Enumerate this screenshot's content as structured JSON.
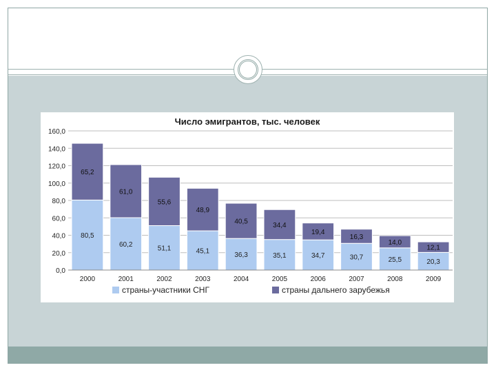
{
  "colors": {
    "series_cis": "#aecbf0",
    "series_far": "#6b6b9e",
    "body_band": "#c8d4d6",
    "footer_band": "#8fa9a6"
  },
  "chart_data": {
    "type": "bar",
    "stacked": true,
    "title": "Число эмигрантов, тыс. человек",
    "categories": [
      "2000",
      "2001",
      "2002",
      "2003",
      "2004",
      "2005",
      "2006",
      "2007",
      "2008",
      "2009"
    ],
    "series": [
      {
        "name": "страны-участники СНГ",
        "values": [
          80.5,
          60.2,
          51.1,
          45.1,
          36.3,
          35.1,
          34.7,
          30.7,
          25.5,
          20.3
        ],
        "labels": [
          "80,5",
          "60,2",
          "51,1",
          "45,1",
          "36,3",
          "35,1",
          "34,7",
          "30,7",
          "25,5",
          "20,3"
        ]
      },
      {
        "name": "страны дальнего зарубежья",
        "values": [
          65.2,
          61.0,
          55.6,
          48.9,
          40.5,
          34.4,
          19.4,
          16.3,
          14.0,
          12.1
        ],
        "labels": [
          "65,2",
          "61,0",
          "55,6",
          "48,9",
          "40,5",
          "34,4",
          "19,4",
          "16,3",
          "14,0",
          "12,1"
        ]
      }
    ],
    "yticks": [
      "0,0",
      "20,0",
      "40,0",
      "60,0",
      "80,0",
      "100,0",
      "120,0",
      "140,0",
      "160,0"
    ],
    "ylim": [
      0,
      160
    ],
    "grid": true,
    "legend_position": "bottom"
  }
}
